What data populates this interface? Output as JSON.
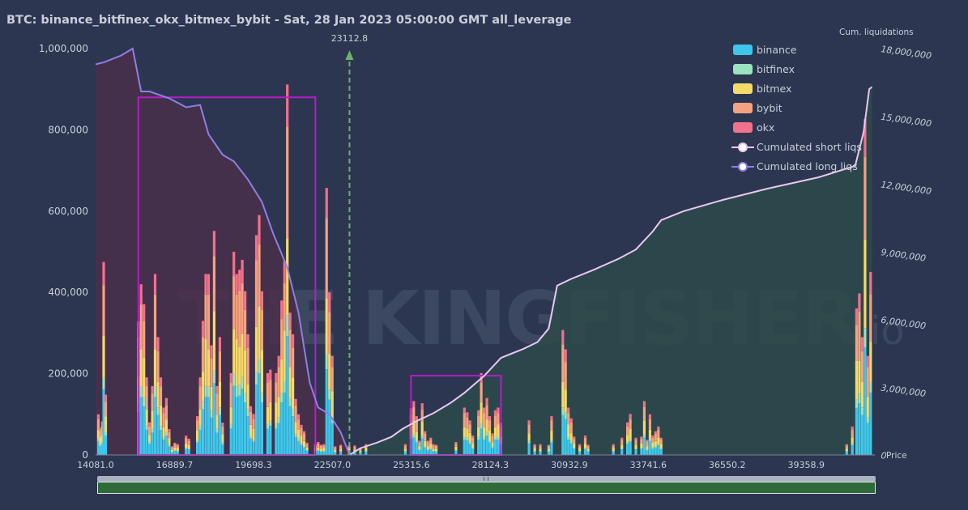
{
  "title": "BTC: binance_bitfinex_okx_bitmex_bybit - Sat, 28 Jan 2023 05:00:00 GMT all_leverage",
  "watermark": "THE KINGFISHER",
  "watermark_suffix": ".io",
  "colors": {
    "background": "#2c3650",
    "binance": "#3ec7ec",
    "bitfinex": "#9de2be",
    "bitmex": "#f5da6a",
    "bybit": "#f6a27f",
    "okx": "#f2718c",
    "short_line": "#e9c8f0",
    "long_line": "#8f7fe3",
    "long_area": "#4a2f4a",
    "short_area": "#2d4a4a",
    "highlight": "#b41ec8",
    "price_marker": "#6bb36b"
  },
  "chart_data": {
    "type": "bar",
    "xlabel": "Price",
    "x_ticks": [
      "14081.0",
      "16889.7",
      "19698.3",
      "22507.0",
      "25315.6",
      "28124.3",
      "30932.9",
      "33741.6",
      "36550.2",
      "39358.9"
    ],
    "x_range": [
      14081.0,
      41800.0
    ],
    "y_left_ticks": [
      "0",
      "200,000",
      "400,000",
      "600,000",
      "800,000",
      "1,000,000"
    ],
    "y_left_range": [
      0,
      1000000
    ],
    "y_right_label": "Cum. liquidations",
    "y_right_ticks": [
      "0",
      "3,000,000",
      "6,000,000",
      "9,000,000",
      "12,000,000",
      "15,000,000",
      "18,000,000"
    ],
    "y_right_range": [
      0,
      18000000
    ],
    "current_price": "23112.8",
    "current_price_value": 23112.8,
    "legend": [
      "binance",
      "bitfinex",
      "bitmex",
      "bybit",
      "okx",
      "Cumulated short liqs",
      "Cumulated long liqs"
    ],
    "series": [
      {
        "name": "binance",
        "role": "bar"
      },
      {
        "name": "bitfinex",
        "role": "bar"
      },
      {
        "name": "bitmex",
        "role": "bar"
      },
      {
        "name": "bybit",
        "role": "bar"
      },
      {
        "name": "okx",
        "role": "bar"
      },
      {
        "name": "Cumulated long liqs",
        "axis": "right",
        "points": [
          [
            14081,
            17300000
          ],
          [
            14400,
            17400000
          ],
          [
            15000,
            17700000
          ],
          [
            15400,
            18000000
          ],
          [
            15700,
            16100000
          ],
          [
            16000,
            16100000
          ],
          [
            16700,
            15800000
          ],
          [
            17300,
            15400000
          ],
          [
            17800,
            15500000
          ],
          [
            18100,
            14200000
          ],
          [
            18600,
            13300000
          ],
          [
            19000,
            13000000
          ],
          [
            19500,
            12200000
          ],
          [
            20000,
            11200000
          ],
          [
            20400,
            9800000
          ],
          [
            20900,
            8300000
          ],
          [
            21300,
            6300000
          ],
          [
            21700,
            3200000
          ],
          [
            22000,
            2100000
          ],
          [
            22400,
            1800000
          ],
          [
            22800,
            1000000
          ],
          [
            23112.8,
            0
          ]
        ]
      },
      {
        "name": "Cumulated short liqs",
        "axis": "right",
        "points": [
          [
            23112.8,
            0
          ],
          [
            23500,
            300000
          ],
          [
            24100,
            550000
          ],
          [
            24600,
            800000
          ],
          [
            25000,
            1150000
          ],
          [
            25500,
            1500000
          ],
          [
            26100,
            1850000
          ],
          [
            26700,
            2300000
          ],
          [
            27200,
            2750000
          ],
          [
            27900,
            3500000
          ],
          [
            28500,
            4300000
          ],
          [
            29300,
            4700000
          ],
          [
            29800,
            5000000
          ],
          [
            30200,
            5600000
          ],
          [
            30500,
            7500000
          ],
          [
            31000,
            7800000
          ],
          [
            31800,
            8200000
          ],
          [
            32700,
            8700000
          ],
          [
            33300,
            9100000
          ],
          [
            33900,
            9900000
          ],
          [
            34200,
            10400000
          ],
          [
            35000,
            10800000
          ],
          [
            36400,
            11300000
          ],
          [
            38000,
            11800000
          ],
          [
            39800,
            12300000
          ],
          [
            41100,
            12800000
          ],
          [
            41400,
            14300000
          ],
          [
            41600,
            16200000
          ],
          [
            41700,
            16300000
          ]
        ]
      }
    ],
    "bars_by_price": [
      [
        14180,
        100000
      ],
      [
        14250,
        63000
      ],
      [
        14320,
        78000
      ],
      [
        14370,
        475000
      ],
      [
        14440,
        140000
      ],
      [
        15600,
        310000
      ],
      [
        15700,
        420000
      ],
      [
        15800,
        350000
      ],
      [
        15900,
        180000
      ],
      [
        16000,
        80000
      ],
      [
        16100,
        160000
      ],
      [
        16200,
        420000
      ],
      [
        16300,
        290000
      ],
      [
        16400,
        180000
      ],
      [
        16500,
        110000
      ],
      [
        16600,
        140000
      ],
      [
        16700,
        60000
      ],
      [
        16800,
        20000
      ],
      [
        16900,
        30000
      ],
      [
        17000,
        25000
      ],
      [
        17300,
        45000
      ],
      [
        17400,
        40000
      ],
      [
        17700,
        90000
      ],
      [
        17800,
        180000
      ],
      [
        17900,
        330000
      ],
      [
        18000,
        420000
      ],
      [
        18100,
        420000
      ],
      [
        18200,
        270000
      ],
      [
        18300,
        520000
      ],
      [
        18400,
        160000
      ],
      [
        18500,
        290000
      ],
      [
        18600,
        75000
      ],
      [
        18900,
        190000
      ],
      [
        19000,
        500000
      ],
      [
        19100,
        420000
      ],
      [
        19200,
        430000
      ],
      [
        19300,
        480000
      ],
      [
        19400,
        380000
      ],
      [
        19500,
        280000
      ],
      [
        19600,
        120000
      ],
      [
        19700,
        95000
      ],
      [
        19800,
        510000
      ],
      [
        19900,
        590000
      ],
      [
        20000,
        380000
      ],
      [
        20200,
        190000
      ],
      [
        20300,
        210000
      ],
      [
        20500,
        190000
      ],
      [
        20600,
        230000
      ],
      [
        20700,
        380000
      ],
      [
        20800,
        450000
      ],
      [
        20900,
        860000
      ],
      [
        21000,
        350000
      ],
      [
        21100,
        280000
      ],
      [
        21200,
        130000
      ],
      [
        21300,
        100000
      ],
      [
        21400,
        70000
      ],
      [
        21500,
        55000
      ],
      [
        21600,
        30000
      ],
      [
        21900,
        25000
      ],
      [
        22000,
        30000
      ],
      [
        22100,
        25000
      ],
      [
        22200,
        25000
      ],
      [
        22300,
        620000
      ],
      [
        22400,
        400000
      ],
      [
        22500,
        230000
      ],
      [
        22600,
        20000
      ],
      [
        22800,
        25000
      ],
      [
        23100,
        22000
      ],
      [
        23300,
        22000
      ],
      [
        23500,
        18000
      ],
      [
        23700,
        25000
      ],
      [
        25100,
        25000
      ],
      [
        25300,
        115000
      ],
      [
        25400,
        125000
      ],
      [
        25500,
        90000
      ],
      [
        25600,
        35000
      ],
      [
        25700,
        120000
      ],
      [
        25800,
        55000
      ],
      [
        25900,
        35000
      ],
      [
        26000,
        40000
      ],
      [
        26100,
        25000
      ],
      [
        26200,
        25000
      ],
      [
        26900,
        30000
      ],
      [
        27200,
        110000
      ],
      [
        27300,
        105000
      ],
      [
        27400,
        80000
      ],
      [
        27500,
        45000
      ],
      [
        27700,
        110000
      ],
      [
        27800,
        190000
      ],
      [
        27900,
        110000
      ],
      [
        28000,
        140000
      ],
      [
        28100,
        90000
      ],
      [
        28200,
        50000
      ],
      [
        28300,
        110000
      ],
      [
        28400,
        110000
      ],
      [
        28500,
        75000
      ],
      [
        29500,
        85000
      ],
      [
        29700,
        25000
      ],
      [
        29900,
        25000
      ],
      [
        30200,
        25000
      ],
      [
        30300,
        90000
      ],
      [
        30700,
        290000
      ],
      [
        30800,
        260000
      ],
      [
        30900,
        110000
      ],
      [
        31000,
        85000
      ],
      [
        31100,
        45000
      ],
      [
        31300,
        25000
      ],
      [
        31500,
        45000
      ],
      [
        31600,
        25000
      ],
      [
        32500,
        25000
      ],
      [
        32800,
        40000
      ],
      [
        33000,
        80000
      ],
      [
        33100,
        95000
      ],
      [
        33300,
        40000
      ],
      [
        33500,
        45000
      ],
      [
        33600,
        125000
      ],
      [
        33700,
        35000
      ],
      [
        33800,
        100000
      ],
      [
        33900,
        45000
      ],
      [
        34000,
        55000
      ],
      [
        34100,
        70000
      ],
      [
        34200,
        40000
      ],
      [
        40800,
        25000
      ],
      [
        41000,
        70000
      ],
      [
        41150,
        340000
      ],
      [
        41250,
        375000
      ],
      [
        41350,
        290000
      ],
      [
        41450,
        780000
      ],
      [
        41550,
        230000
      ],
      [
        41650,
        450000
      ]
    ],
    "highlight_boxes": [
      {
        "x": [
          15600,
          21900
        ],
        "y": [
          0,
          880000
        ]
      },
      {
        "x": [
          25300,
          28500
        ],
        "y": [
          0,
          195000
        ]
      }
    ]
  }
}
